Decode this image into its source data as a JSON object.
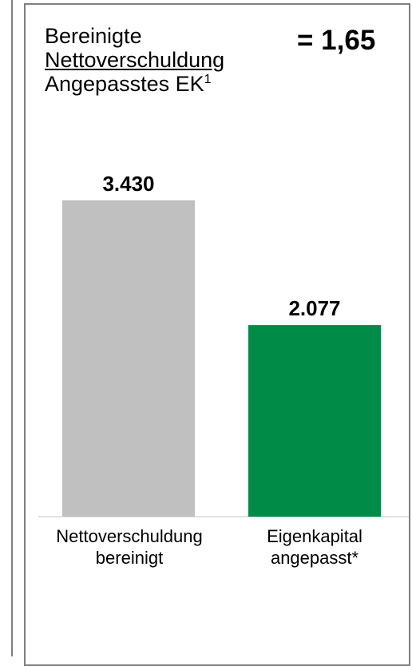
{
  "header": {
    "line1": "Bereinigte",
    "numerator": "Nettoverschuldung",
    "denominator": "Angepasstes EK",
    "footnote_mark": "1",
    "ratio": "= 1,65"
  },
  "chart_data": {
    "type": "bar",
    "categories": [
      "Nettoverschuldung bereinigt",
      "Eigenkapital angepasst*"
    ],
    "category_lines": [
      [
        "Nettoverschuldung",
        "bereinigt"
      ],
      [
        "Eigenkapital",
        "angepasst*"
      ]
    ],
    "values": [
      3430,
      2077
    ],
    "value_labels": [
      "3.430",
      "2.077"
    ],
    "colors": [
      "#c0c0c0",
      "#008c46"
    ],
    "ylim": [
      0,
      3870
    ],
    "grid": false,
    "legend": "none"
  }
}
